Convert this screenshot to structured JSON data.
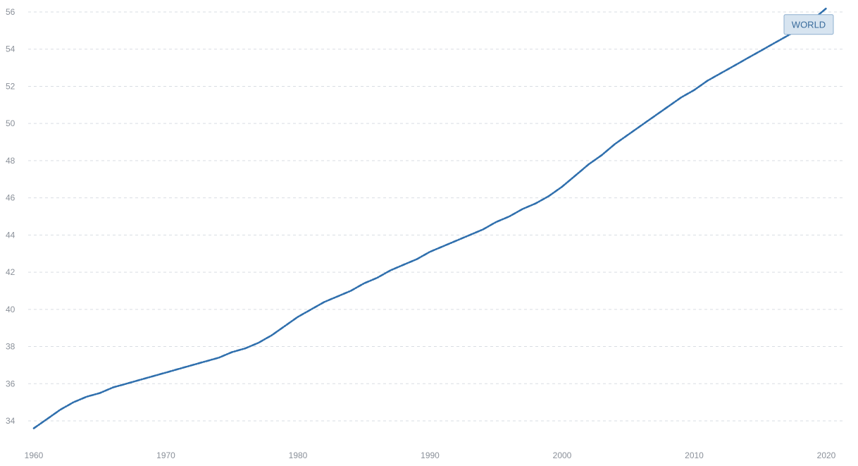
{
  "chart_data": {
    "type": "line",
    "title": "",
    "xlabel": "",
    "ylabel": "",
    "xlim": [
      1960,
      2020
    ],
    "ylim": [
      33,
      56
    ],
    "x_ticks": [
      1960,
      1970,
      1980,
      1990,
      2000,
      2010,
      2020
    ],
    "y_ticks": [
      34,
      36,
      38,
      40,
      42,
      44,
      46,
      48,
      50,
      52,
      54,
      56
    ],
    "grid": "horizontal dashed",
    "line_color": "#2f6fad",
    "series": [
      {
        "name": "WORLD",
        "x": [
          1960,
          1961,
          1962,
          1963,
          1964,
          1965,
          1966,
          1967,
          1968,
          1969,
          1970,
          1971,
          1972,
          1973,
          1974,
          1975,
          1976,
          1977,
          1978,
          1979,
          1980,
          1981,
          1982,
          1983,
          1984,
          1985,
          1986,
          1987,
          1988,
          1989,
          1990,
          1991,
          1992,
          1993,
          1994,
          1995,
          1996,
          1997,
          1998,
          1999,
          2000,
          2001,
          2002,
          2003,
          2004,
          2005,
          2006,
          2007,
          2008,
          2009,
          2010,
          2011,
          2012,
          2013,
          2014,
          2015,
          2016,
          2017,
          2018,
          2019,
          2020
        ],
        "values": [
          33.6,
          34.1,
          34.6,
          35.0,
          35.3,
          35.5,
          35.8,
          36.0,
          36.2,
          36.4,
          36.6,
          36.8,
          37.0,
          37.2,
          37.4,
          37.7,
          37.9,
          38.2,
          38.6,
          39.1,
          39.6,
          40.0,
          40.4,
          40.7,
          41.0,
          41.4,
          41.7,
          42.1,
          42.4,
          42.7,
          43.1,
          43.4,
          43.7,
          44.0,
          44.3,
          44.7,
          45.0,
          45.4,
          45.7,
          46.1,
          46.6,
          47.2,
          47.8,
          48.3,
          48.9,
          49.4,
          49.9,
          50.4,
          50.9,
          51.4,
          51.8,
          52.3,
          52.7,
          53.1,
          53.5,
          53.9,
          54.3,
          54.7,
          55.1,
          55.6,
          56.2
        ]
      }
    ]
  }
}
